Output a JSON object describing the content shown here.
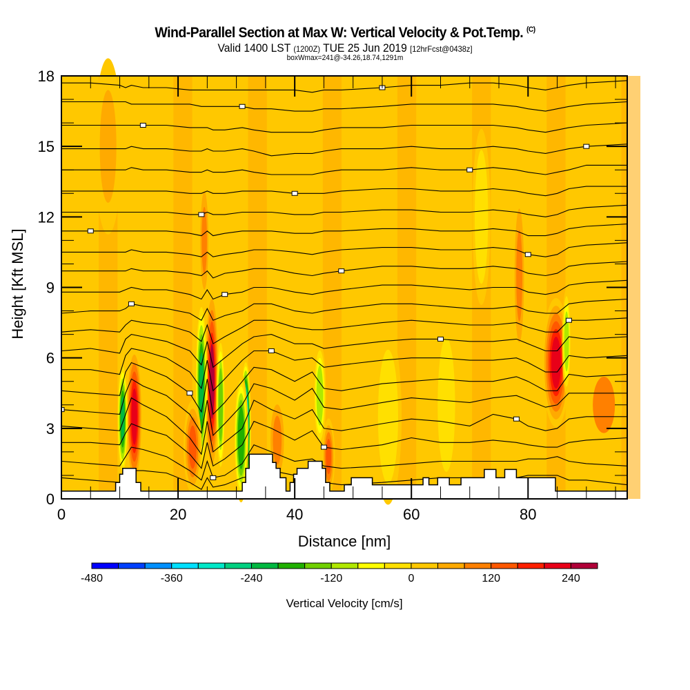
{
  "header": {
    "title": "Wind-Parallel Section at Max W: Vertical Velocity & Pot.Temp.",
    "copyright_mark": "(C)",
    "subtitle_prefix": "Valid 1400 LST",
    "subtitle_utc": "(1200Z)",
    "subtitle_date": "TUE 25 Jun 2019",
    "subtitle_fcst": "[12hrFcst@0438z]",
    "box_info": "boxWmax=241@-34.26,18.74,1291m"
  },
  "chart_data": {
    "type": "heatmap",
    "title": "Wind-Parallel Section at Max W: Vertical Velocity & Pot.Temp.",
    "xlabel": "Distance [nm]",
    "ylabel": "Height [Kft MSL]",
    "xlim": [
      0,
      97
    ],
    "ylim": [
      0,
      18
    ],
    "x_ticks": [
      "0",
      "20",
      "40",
      "60",
      "80"
    ],
    "y_ticks": [
      "0",
      "3",
      "6",
      "9",
      "12",
      "15",
      "18"
    ],
    "x_tick_values": [
      0,
      20,
      40,
      60,
      80
    ],
    "y_tick_values": [
      0,
      3,
      6,
      9,
      12,
      15,
      18
    ],
    "x_minor_step": 5,
    "y_minor_step": 1,
    "background_value": 30,
    "velocity_features": [
      {
        "x": 12.5,
        "y": 3.5,
        "sx": 0.9,
        "sy": 2.4,
        "value": 220
      },
      {
        "x": 10.5,
        "y": 3.4,
        "sx": 0.6,
        "sy": 2.0,
        "value": -220
      },
      {
        "x": 25.8,
        "y": 5.0,
        "sx": 0.8,
        "sy": 3.2,
        "value": 240
      },
      {
        "x": 24.0,
        "y": 4.8,
        "sx": 0.7,
        "sy": 3.0,
        "value": -220
      },
      {
        "x": 27.3,
        "y": 4.0,
        "sx": 0.5,
        "sy": 2.4,
        "value": -160
      },
      {
        "x": 22.5,
        "y": 2.2,
        "sx": 1.0,
        "sy": 1.6,
        "value": 140
      },
      {
        "x": 31.6,
        "y": 3.0,
        "sx": 0.6,
        "sy": 2.4,
        "value": -420
      },
      {
        "x": 30.8,
        "y": 2.6,
        "sx": 0.8,
        "sy": 2.2,
        "value": -200
      },
      {
        "x": 44.3,
        "y": 4.4,
        "sx": 0.7,
        "sy": 1.8,
        "value": -120
      },
      {
        "x": 45.8,
        "y": 1.8,
        "sx": 0.7,
        "sy": 1.3,
        "value": 130
      },
      {
        "x": 37.0,
        "y": 2.5,
        "sx": 1.0,
        "sy": 1.6,
        "value": 110
      },
      {
        "x": 84.8,
        "y": 5.8,
        "sx": 1.5,
        "sy": 2.2,
        "value": 220
      },
      {
        "x": 86.6,
        "y": 6.7,
        "sx": 0.5,
        "sy": 1.8,
        "value": -120
      },
      {
        "x": 78.5,
        "y": 9.5,
        "sx": 0.7,
        "sy": 3.0,
        "value": 110
      },
      {
        "x": 24.5,
        "y": 11.0,
        "sx": 0.6,
        "sy": 2.2,
        "value": 90
      },
      {
        "x": 56.0,
        "y": 3.5,
        "sx": 1.5,
        "sy": 3.0,
        "value": -40
      },
      {
        "x": 66.0,
        "y": 4.0,
        "sx": 1.3,
        "sy": 3.0,
        "value": -40
      },
      {
        "x": 72.0,
        "y": 12.0,
        "sx": 1.0,
        "sy": 3.0,
        "value": -40
      },
      {
        "x": 8.0,
        "y": 15.0,
        "sx": 1.5,
        "sy": 3.0,
        "value": 70
      },
      {
        "x": 93.0,
        "y": 4.0,
        "sx": 2.0,
        "sy": 1.5,
        "value": 80
      }
    ],
    "terrain_kft": {
      "x": [
        0,
        9.3,
        9.3,
        10.0,
        10.0,
        10.5,
        10.5,
        12.8,
        12.8,
        13.6,
        13.6,
        31.0,
        31.0,
        31.6,
        31.6,
        32.2,
        32.2,
        36.2,
        36.2,
        36.8,
        36.8,
        37.5,
        37.5,
        38.5,
        38.5,
        39.2,
        39.2,
        39.8,
        39.8,
        40.4,
        40.4,
        42.3,
        42.3,
        44.7,
        44.7,
        45.3,
        45.3,
        46.0,
        46.0,
        48.5,
        48.5,
        49.7,
        49.7,
        53.3,
        53.3,
        62.0,
        62.0,
        63.0,
        63.0,
        64.5,
        64.5,
        66.5,
        66.5,
        68.5,
        68.5,
        72.5,
        72.5,
        74.5,
        74.5,
        76.0,
        76.0,
        78.0,
        78.0,
        84.7,
        84.7,
        97
      ],
      "y": [
        0.33,
        0.33,
        0.7,
        0.7,
        1.05,
        1.05,
        1.3,
        1.3,
        0.7,
        0.7,
        0.33,
        0.33,
        0.7,
        0.7,
        1.3,
        1.3,
        1.9,
        1.9,
        1.55,
        1.55,
        1.3,
        1.3,
        0.9,
        0.9,
        0.33,
        0.33,
        0.7,
        0.7,
        1.05,
        1.05,
        1.3,
        1.3,
        1.6,
        1.6,
        1.3,
        1.3,
        0.7,
        0.7,
        0.33,
        0.33,
        0.6,
        0.6,
        0.9,
        0.9,
        0.6,
        0.6,
        0.9,
        0.9,
        0.6,
        0.6,
        0.9,
        0.9,
        0.6,
        0.6,
        0.9,
        0.9,
        1.25,
        1.25,
        0.9,
        0.9,
        1.25,
        1.25,
        0.9,
        0.9,
        0.33,
        0.33
      ]
    },
    "theta_contours": {
      "x": [
        0,
        5,
        10,
        11,
        12,
        14,
        18,
        22,
        24,
        25,
        26,
        28,
        31,
        33,
        36,
        40,
        43,
        45,
        48,
        55,
        60,
        65,
        70,
        74,
        78,
        80,
        83,
        85,
        87,
        90,
        97
      ],
      "levels_kft": [
        [
          0.9,
          0.8,
          0.7,
          1.0,
          1.2,
          1.2,
          1.1,
          0.7,
          0.4,
          0.9,
          0.5,
          0.6,
          0.9,
          1.0,
          1.2,
          1.0,
          0.8,
          0.7,
          0.6,
          0.7,
          0.8,
          0.9,
          0.9,
          0.9,
          0.9,
          1.0,
          1.0,
          1.0,
          0.8,
          0.8,
          0.6
        ],
        [
          1.6,
          1.5,
          1.4,
          1.8,
          2.2,
          2.1,
          1.8,
          1.2,
          0.8,
          1.6,
          0.9,
          1.0,
          1.5,
          2.3,
          2.0,
          1.6,
          1.7,
          1.4,
          1.3,
          1.4,
          1.5,
          1.6,
          1.6,
          1.6,
          1.6,
          1.7,
          1.7,
          1.8,
          1.6,
          1.5,
          1.4
        ],
        [
          2.4,
          2.4,
          2.3,
          2.8,
          3.2,
          3.0,
          2.7,
          1.9,
          1.3,
          2.4,
          1.4,
          1.7,
          2.3,
          3.3,
          3.0,
          2.5,
          2.9,
          2.2,
          2.1,
          2.3,
          2.6,
          2.4,
          2.4,
          2.5,
          2.4,
          2.3,
          2.2,
          2.2,
          2.4,
          2.5,
          2.6
        ],
        [
          3.1,
          3.0,
          2.9,
          3.6,
          4.3,
          4.0,
          3.5,
          2.6,
          1.9,
          3.3,
          2.0,
          2.4,
          3.0,
          4.2,
          3.8,
          3.4,
          3.8,
          3.0,
          2.9,
          3.2,
          3.4,
          3.3,
          3.1,
          3.6,
          3.4,
          3.1,
          2.9,
          3.0,
          3.4,
          3.5,
          3.5
        ],
        [
          3.8,
          3.7,
          3.6,
          4.5,
          5.1,
          4.8,
          4.4,
          3.6,
          2.8,
          4.2,
          2.7,
          3.2,
          4.0,
          4.9,
          4.7,
          4.2,
          4.7,
          3.9,
          3.8,
          4.1,
          4.3,
          4.2,
          4.1,
          4.3,
          4.4,
          4.2,
          3.9,
          4.0,
          4.5,
          4.5,
          4.5
        ],
        [
          4.6,
          4.5,
          4.4,
          5.4,
          5.8,
          5.6,
          5.2,
          4.5,
          3.7,
          5.1,
          3.6,
          4.1,
          5.0,
          5.6,
          5.5,
          5.0,
          5.4,
          4.7,
          4.6,
          4.9,
          5.0,
          5.1,
          5.0,
          5.0,
          5.2,
          5.0,
          4.6,
          4.6,
          5.3,
          5.2,
          5.3
        ],
        [
          5.5,
          5.5,
          5.3,
          6.1,
          6.4,
          6.3,
          6.0,
          5.4,
          4.7,
          5.9,
          4.6,
          5.1,
          5.9,
          6.3,
          6.3,
          5.9,
          6.0,
          5.6,
          5.7,
          5.9,
          6.0,
          6.0,
          5.9,
          5.9,
          6.0,
          5.8,
          5.4,
          5.4,
          6.1,
          6.0,
          6.1
        ],
        [
          6.3,
          6.4,
          6.2,
          6.8,
          7.0,
          6.9,
          6.7,
          6.3,
          5.7,
          6.7,
          5.6,
          6.0,
          6.6,
          6.9,
          7.0,
          6.6,
          6.6,
          6.4,
          6.5,
          6.7,
          6.8,
          6.8,
          6.7,
          6.7,
          6.8,
          6.6,
          6.3,
          6.3,
          6.9,
          6.8,
          6.9
        ],
        [
          7.1,
          7.2,
          7.1,
          7.4,
          7.6,
          7.5,
          7.4,
          7.1,
          6.7,
          7.4,
          6.6,
          6.9,
          7.3,
          7.6,
          7.6,
          7.3,
          7.2,
          7.2,
          7.3,
          7.5,
          7.6,
          7.5,
          7.4,
          7.4,
          7.5,
          7.3,
          7.1,
          7.1,
          7.6,
          7.6,
          7.7
        ],
        [
          7.9,
          8.0,
          8.0,
          8.1,
          8.3,
          8.2,
          8.1,
          7.9,
          7.6,
          8.1,
          7.6,
          7.8,
          8.0,
          8.3,
          8.3,
          8.0,
          7.9,
          8.0,
          8.1,
          8.3,
          8.3,
          8.2,
          8.1,
          8.1,
          8.2,
          8.0,
          7.9,
          7.9,
          8.3,
          8.4,
          8.5
        ],
        [
          8.8,
          8.8,
          8.8,
          8.9,
          9.0,
          8.9,
          8.9,
          8.7,
          8.5,
          8.9,
          8.5,
          8.7,
          8.8,
          9.0,
          9.0,
          8.8,
          8.7,
          8.8,
          8.9,
          9.1,
          9.1,
          9.0,
          8.9,
          9.0,
          9.0,
          8.8,
          8.7,
          8.8,
          9.1,
          9.2,
          9.3
        ],
        [
          9.7,
          9.7,
          9.7,
          9.7,
          9.8,
          9.7,
          9.7,
          9.6,
          9.5,
          9.7,
          9.4,
          9.6,
          9.7,
          9.8,
          9.8,
          9.6,
          9.5,
          9.6,
          9.7,
          9.9,
          9.9,
          9.8,
          9.8,
          9.9,
          9.8,
          9.6,
          9.5,
          9.6,
          9.9,
          10.0,
          10.1
        ],
        [
          10.5,
          10.5,
          10.5,
          10.5,
          10.6,
          10.5,
          10.5,
          10.4,
          10.3,
          10.5,
          10.3,
          10.4,
          10.5,
          10.6,
          10.6,
          10.5,
          10.4,
          10.5,
          10.6,
          10.7,
          10.7,
          10.6,
          10.6,
          10.7,
          10.6,
          10.4,
          10.3,
          10.4,
          10.7,
          10.8,
          10.9
        ],
        [
          11.4,
          11.4,
          11.4,
          11.4,
          11.4,
          11.4,
          11.4,
          11.3,
          11.2,
          11.4,
          11.2,
          11.3,
          11.4,
          11.4,
          11.4,
          11.3,
          11.3,
          11.4,
          11.4,
          11.5,
          11.5,
          11.4,
          11.4,
          11.5,
          11.4,
          11.2,
          11.2,
          11.3,
          11.5,
          11.6,
          11.7
        ],
        [
          12.2,
          12.2,
          12.2,
          12.2,
          12.2,
          12.2,
          12.2,
          12.1,
          12.1,
          12.2,
          12.1,
          12.1,
          12.2,
          12.2,
          12.2,
          12.1,
          12.1,
          12.2,
          12.2,
          12.3,
          12.3,
          12.2,
          12.2,
          12.3,
          12.2,
          12.1,
          12.0,
          12.1,
          12.3,
          12.4,
          12.5
        ],
        [
          13.1,
          13.1,
          13.1,
          13.1,
          13.1,
          13.1,
          13.1,
          13.0,
          13.0,
          13.1,
          13.0,
          13.0,
          13.1,
          13.1,
          13.1,
          13.0,
          13.0,
          13.0,
          13.1,
          13.2,
          13.2,
          13.1,
          13.1,
          13.2,
          13.1,
          13.0,
          12.9,
          13.0,
          13.2,
          13.3,
          13.3
        ],
        [
          14.0,
          14.0,
          14.0,
          14.0,
          14.1,
          14.0,
          14.0,
          13.9,
          13.9,
          14.0,
          13.9,
          13.9,
          14.0,
          13.9,
          13.8,
          13.8,
          13.8,
          13.9,
          14.0,
          14.0,
          14.1,
          14.0,
          14.0,
          14.1,
          14.0,
          13.9,
          13.8,
          13.9,
          14.0,
          14.2,
          14.2
        ],
        [
          14.9,
          14.9,
          14.9,
          14.9,
          15.0,
          14.9,
          14.9,
          14.8,
          14.8,
          14.9,
          14.8,
          14.8,
          14.9,
          14.8,
          14.6,
          14.7,
          14.7,
          14.8,
          14.9,
          14.9,
          15.0,
          14.9,
          14.9,
          15.0,
          14.9,
          14.8,
          14.7,
          14.8,
          14.9,
          15.0,
          15.1
        ],
        [
          15.9,
          15.9,
          15.9,
          15.9,
          15.9,
          15.9,
          15.9,
          15.8,
          15.8,
          15.8,
          15.7,
          15.7,
          15.8,
          15.7,
          15.6,
          15.6,
          15.6,
          15.7,
          15.8,
          15.8,
          15.9,
          15.9,
          15.9,
          15.9,
          15.8,
          15.7,
          15.6,
          15.7,
          15.8,
          15.9,
          16.0
        ],
        [
          16.9,
          16.9,
          16.9,
          16.9,
          16.8,
          16.8,
          16.8,
          16.8,
          16.7,
          16.7,
          16.7,
          16.7,
          16.7,
          16.6,
          16.6,
          16.5,
          16.5,
          16.6,
          16.6,
          16.7,
          16.8,
          16.8,
          16.8,
          16.8,
          16.7,
          16.6,
          16.5,
          16.6,
          16.7,
          16.8,
          16.9
        ],
        [
          17.7,
          17.7,
          17.6,
          17.5,
          17.6,
          17.5,
          17.5,
          17.4,
          17.4,
          17.4,
          17.4,
          17.4,
          17.4,
          17.4,
          17.4,
          17.4,
          17.3,
          17.4,
          17.4,
          17.5,
          17.6,
          17.6,
          17.7,
          17.7,
          17.6,
          17.5,
          17.4,
          17.5,
          17.6,
          17.7,
          17.8
        ]
      ]
    },
    "colorbar": {
      "title": "Vertical Velocity [cm/s]",
      "min": -480,
      "step": 40,
      "tick_labels": [
        "-480",
        "-360",
        "-240",
        "-120",
        "0",
        "120",
        "240"
      ],
      "tick_values": [
        -480,
        -360,
        -240,
        -120,
        0,
        120,
        240
      ],
      "colors": [
        "#0000ff",
        "#0040ff",
        "#0090ff",
        "#00e0ff",
        "#00e8c8",
        "#00d080",
        "#00b840",
        "#20b000",
        "#70d000",
        "#b0e800",
        "#ffff00",
        "#ffe000",
        "#ffc800",
        "#ffaa00",
        "#ff8000",
        "#ff5800",
        "#ff2000",
        "#e80018",
        "#b00038"
      ]
    }
  }
}
